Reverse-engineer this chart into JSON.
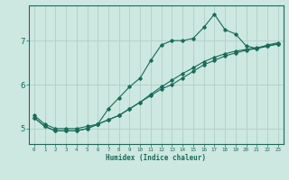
{
  "xlabel": "Humidex (Indice chaleur)",
  "ylabel": "",
  "bg_color": "#cce8e0",
  "grid_color": "#b0d0c8",
  "line_color": "#1a6b5a",
  "xlim": [
    -0.5,
    23.5
  ],
  "ylim": [
    4.65,
    7.8
  ],
  "yticks": [
    5,
    6,
    7
  ],
  "xticks": [
    0,
    1,
    2,
    3,
    4,
    5,
    6,
    7,
    8,
    9,
    10,
    11,
    12,
    13,
    14,
    15,
    16,
    17,
    18,
    19,
    20,
    21,
    22,
    23
  ],
  "series": [
    [
      5.3,
      5.1,
      5.0,
      5.0,
      5.0,
      5.05,
      5.1,
      5.45,
      5.7,
      5.95,
      6.15,
      6.55,
      6.9,
      7.0,
      7.0,
      7.05,
      7.3,
      7.6,
      7.25,
      7.15,
      6.88,
      6.82,
      6.9,
      6.95
    ],
    [
      5.25,
      5.05,
      4.95,
      4.95,
      4.95,
      5.0,
      5.1,
      5.2,
      5.3,
      5.45,
      5.6,
      5.75,
      5.9,
      6.0,
      6.15,
      6.3,
      6.45,
      6.55,
      6.65,
      6.72,
      6.78,
      6.82,
      6.87,
      6.92
    ],
    [
      5.25,
      5.05,
      4.95,
      4.95,
      4.95,
      5.0,
      5.1,
      5.2,
      5.3,
      5.45,
      5.6,
      5.78,
      5.95,
      6.1,
      6.25,
      6.38,
      6.52,
      6.62,
      6.7,
      6.76,
      6.8,
      6.84,
      6.88,
      6.93
    ]
  ]
}
